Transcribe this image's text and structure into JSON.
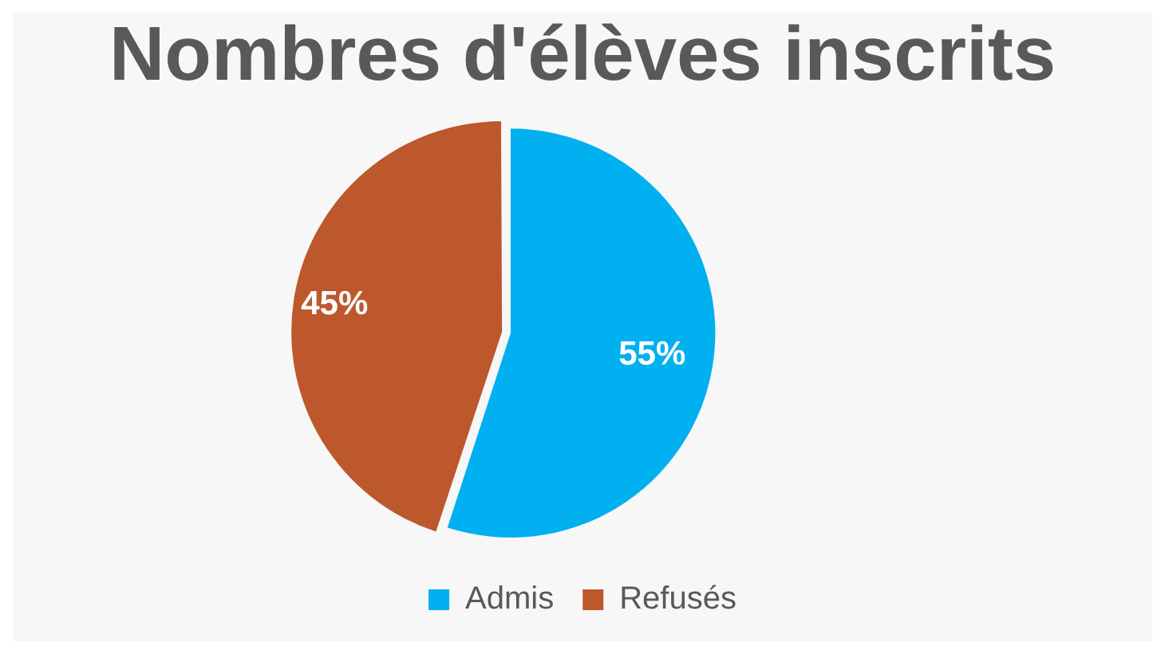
{
  "chart_data": {
    "type": "pie",
    "title": "Nombres d'élèves inscrits",
    "categories": [
      "Admis",
      "Refusés"
    ],
    "values": [
      55,
      45
    ],
    "colors": [
      "#00b0f0",
      "#bd582c"
    ],
    "value_labels": [
      "55%",
      "45%"
    ],
    "legend": "bottom"
  }
}
